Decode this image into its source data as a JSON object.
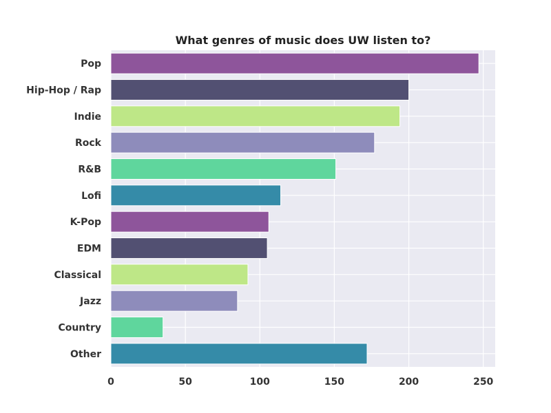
{
  "chart_data": {
    "type": "bar",
    "orientation": "horizontal",
    "title": "What genres of music does UW listen to?",
    "xlabel": "",
    "ylabel": "",
    "categories": [
      "Pop",
      "Hip-Hop / Rap",
      "Indie",
      "Rock",
      "R&B",
      "Lofi",
      "K-Pop",
      "EDM",
      "Classical",
      "Jazz",
      "Country",
      "Other"
    ],
    "values": [
      247,
      200,
      194,
      177,
      151,
      114,
      106,
      105,
      92,
      85,
      35,
      172
    ],
    "xlim": [
      0,
      258
    ],
    "xticks": [
      0,
      50,
      100,
      150,
      200,
      250
    ],
    "grid": true,
    "colors": [
      "#8e559b",
      "#525072",
      "#bee787",
      "#8e8cbb",
      "#5fd69d",
      "#358ba8",
      "#8e559b",
      "#525072",
      "#bee787",
      "#8e8cbb",
      "#5fd69d",
      "#358ba8"
    ],
    "plot_background": "#eaeaf2"
  }
}
